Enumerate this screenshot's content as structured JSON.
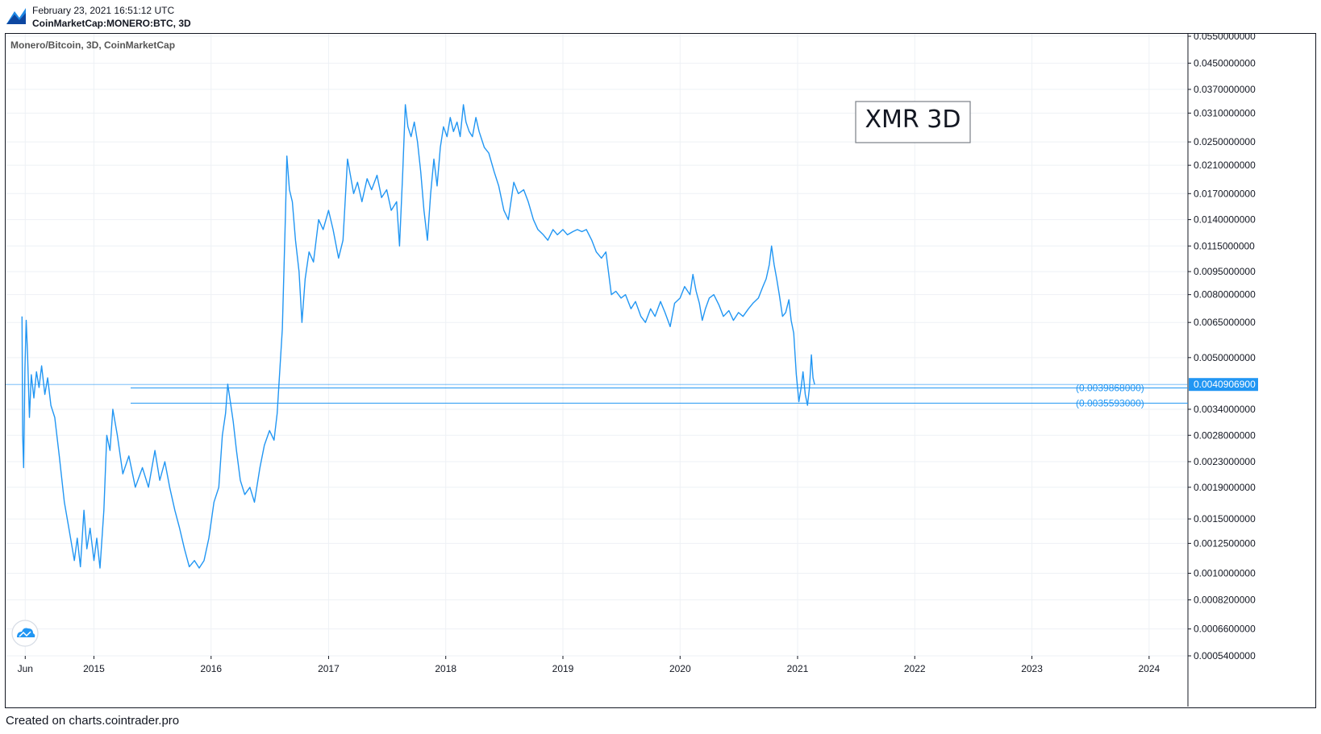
{
  "header": {
    "timestamp": "February 23, 2021 16:51:12 UTC",
    "symbol": "CoinMarketCap:MONERO:BTC, 3D"
  },
  "footer": {
    "credit": "Created on charts.cointrader.pro"
  },
  "colors": {
    "line": "#2196f3",
    "grid": "#eef1f5",
    "axis": "#131722",
    "frame": "#131722"
  },
  "icons": {
    "app_logo": "cointrader-logo-icon",
    "tv_badge": "tradingview-cloud-icon"
  },
  "chart_data": {
    "type": "line",
    "title": "XMR 3D",
    "legend": "Monero/Bitcoin, 3D, CoinMarketCap",
    "y_scale": "log",
    "ylim": [
      0.00054,
      0.055
    ],
    "xlim": [
      "2014-04-01",
      "2024-05-01"
    ],
    "grid": true,
    "x_ticks": [
      {
        "label": "Jun",
        "x": "2014-06-01"
      },
      {
        "label": "2015",
        "x": "2015-01-01"
      },
      {
        "label": "2016",
        "x": "2016-01-01"
      },
      {
        "label": "2017",
        "x": "2017-01-01"
      },
      {
        "label": "2018",
        "x": "2018-01-01"
      },
      {
        "label": "2019",
        "x": "2019-01-01"
      },
      {
        "label": "2020",
        "x": "2020-01-01"
      },
      {
        "label": "2021",
        "x": "2021-01-01"
      },
      {
        "label": "2022",
        "x": "2022-01-01"
      },
      {
        "label": "2023",
        "x": "2023-01-01"
      },
      {
        "label": "2024",
        "x": "2024-01-01"
      }
    ],
    "y_ticks": [
      "0.0550000000",
      "0.0450000000",
      "0.0370000000",
      "0.0310000000",
      "0.0250000000",
      "0.0210000000",
      "0.0170000000",
      "0.0140000000",
      "0.0115000000",
      "0.0095000000",
      "0.0080000000",
      "0.0065000000",
      "0.0050000000",
      "0.0034000000",
      "0.0028000000",
      "0.0023000000",
      "0.0019000000",
      "0.0015000000",
      "0.0012500000",
      "0.0010000000",
      "0.0008200000",
      "0.0006600000",
      "0.0005400000"
    ],
    "last_price": {
      "label": "0.0040906900",
      "value": 0.00409069
    },
    "levels": [
      {
        "label": "(0.0039868000)",
        "value": 0.0039868
      },
      {
        "label": "(0.0035593000)",
        "value": 0.0035593
      }
    ],
    "series": [
      {
        "values": [
          [
            "2014-05-22",
            0.0068
          ],
          [
            "2014-05-24",
            0.0028
          ],
          [
            "2014-05-27",
            0.0022
          ],
          [
            "2014-05-31",
            0.0046
          ],
          [
            "2014-06-04",
            0.0066
          ],
          [
            "2014-06-08",
            0.0052
          ],
          [
            "2014-06-14",
            0.0032
          ],
          [
            "2014-06-20",
            0.0044
          ],
          [
            "2014-06-28",
            0.0037
          ],
          [
            "2014-07-06",
            0.0045
          ],
          [
            "2014-07-14",
            0.004
          ],
          [
            "2014-07-22",
            0.0047
          ],
          [
            "2014-08-01",
            0.0038
          ],
          [
            "2014-08-10",
            0.0043
          ],
          [
            "2014-08-20",
            0.0035
          ],
          [
            "2014-09-01",
            0.0032
          ],
          [
            "2014-09-15",
            0.0024
          ],
          [
            "2014-10-01",
            0.0017
          ],
          [
            "2014-10-15",
            0.0014
          ],
          [
            "2014-11-01",
            0.0011
          ],
          [
            "2014-11-10",
            0.0013
          ],
          [
            "2014-11-20",
            0.00105
          ],
          [
            "2014-12-01",
            0.0016
          ],
          [
            "2014-12-10",
            0.0012
          ],
          [
            "2014-12-20",
            0.0014
          ],
          [
            "2015-01-01",
            0.0011
          ],
          [
            "2015-01-10",
            0.0013
          ],
          [
            "2015-01-20",
            0.00104
          ],
          [
            "2015-02-01",
            0.0016
          ],
          [
            "2015-02-10",
            0.0028
          ],
          [
            "2015-02-20",
            0.0025
          ],
          [
            "2015-03-01",
            0.0034
          ],
          [
            "2015-03-15",
            0.0028
          ],
          [
            "2015-04-01",
            0.0021
          ],
          [
            "2015-04-20",
            0.0024
          ],
          [
            "2015-05-10",
            0.0019
          ],
          [
            "2015-06-01",
            0.0022
          ],
          [
            "2015-06-20",
            0.0019
          ],
          [
            "2015-07-10",
            0.0025
          ],
          [
            "2015-07-25",
            0.002
          ],
          [
            "2015-08-10",
            0.0023
          ],
          [
            "2015-08-25",
            0.0019
          ],
          [
            "2015-09-10",
            0.0016
          ],
          [
            "2015-09-25",
            0.0014
          ],
          [
            "2015-10-10",
            0.0012
          ],
          [
            "2015-10-25",
            0.00105
          ],
          [
            "2015-11-10",
            0.0011
          ],
          [
            "2015-11-25",
            0.00104
          ],
          [
            "2015-12-10",
            0.0011
          ],
          [
            "2015-12-25",
            0.0013
          ],
          [
            "2016-01-10",
            0.0017
          ],
          [
            "2016-01-25",
            0.0019
          ],
          [
            "2016-02-05",
            0.0028
          ],
          [
            "2016-02-15",
            0.0033
          ],
          [
            "2016-02-22",
            0.0041
          ],
          [
            "2016-03-01",
            0.0036
          ],
          [
            "2016-03-10",
            0.0031
          ],
          [
            "2016-03-20",
            0.0025
          ],
          [
            "2016-04-01",
            0.002
          ],
          [
            "2016-04-15",
            0.0018
          ],
          [
            "2016-05-01",
            0.0019
          ],
          [
            "2016-05-15",
            0.0017
          ],
          [
            "2016-06-01",
            0.0022
          ],
          [
            "2016-06-15",
            0.0026
          ],
          [
            "2016-07-01",
            0.0029
          ],
          [
            "2016-07-15",
            0.0027
          ],
          [
            "2016-07-25",
            0.0033
          ],
          [
            "2016-08-10",
            0.0062
          ],
          [
            "2016-08-20",
            0.015
          ],
          [
            "2016-08-24",
            0.0225
          ],
          [
            "2016-09-01",
            0.0175
          ],
          [
            "2016-09-10",
            0.016
          ],
          [
            "2016-09-20",
            0.012
          ],
          [
            "2016-10-01",
            0.0095
          ],
          [
            "2016-10-10",
            0.0065
          ],
          [
            "2016-10-20",
            0.009
          ],
          [
            "2016-11-01",
            0.011
          ],
          [
            "2016-11-15",
            0.0102
          ],
          [
            "2016-12-01",
            0.014
          ],
          [
            "2016-12-15",
            0.013
          ],
          [
            "2017-01-01",
            0.015
          ],
          [
            "2017-01-15",
            0.013
          ],
          [
            "2017-02-01",
            0.0105
          ],
          [
            "2017-02-15",
            0.012
          ],
          [
            "2017-03-01",
            0.022
          ],
          [
            "2017-03-10",
            0.0195
          ],
          [
            "2017-03-20",
            0.017
          ],
          [
            "2017-04-01",
            0.0185
          ],
          [
            "2017-04-15",
            0.016
          ],
          [
            "2017-05-01",
            0.019
          ],
          [
            "2017-05-15",
            0.0175
          ],
          [
            "2017-06-01",
            0.0195
          ],
          [
            "2017-06-15",
            0.0165
          ],
          [
            "2017-07-01",
            0.0175
          ],
          [
            "2017-07-15",
            0.015
          ],
          [
            "2017-08-01",
            0.016
          ],
          [
            "2017-08-10",
            0.0115
          ],
          [
            "2017-08-20",
            0.02
          ],
          [
            "2017-08-28",
            0.033
          ],
          [
            "2017-09-05",
            0.028
          ],
          [
            "2017-09-15",
            0.026
          ],
          [
            "2017-09-25",
            0.029
          ],
          [
            "2017-10-05",
            0.025
          ],
          [
            "2017-10-15",
            0.02
          ],
          [
            "2017-10-25",
            0.015
          ],
          [
            "2017-11-05",
            0.012
          ],
          [
            "2017-11-15",
            0.017
          ],
          [
            "2017-11-25",
            0.022
          ],
          [
            "2017-12-05",
            0.018
          ],
          [
            "2017-12-15",
            0.024
          ],
          [
            "2017-12-25",
            0.028
          ],
          [
            "2018-01-05",
            0.026
          ],
          [
            "2018-01-15",
            0.03
          ],
          [
            "2018-01-25",
            0.027
          ],
          [
            "2018-02-05",
            0.029
          ],
          [
            "2018-02-15",
            0.026
          ],
          [
            "2018-02-25",
            0.033
          ],
          [
            "2018-03-05",
            0.029
          ],
          [
            "2018-03-15",
            0.027
          ],
          [
            "2018-03-25",
            0.026
          ],
          [
            "2018-04-05",
            0.03
          ],
          [
            "2018-04-15",
            0.027
          ],
          [
            "2018-05-01",
            0.024
          ],
          [
            "2018-05-15",
            0.023
          ],
          [
            "2018-06-01",
            0.02
          ],
          [
            "2018-06-15",
            0.018
          ],
          [
            "2018-07-01",
            0.015
          ],
          [
            "2018-07-15",
            0.014
          ],
          [
            "2018-08-01",
            0.0185
          ],
          [
            "2018-08-15",
            0.017
          ],
          [
            "2018-09-01",
            0.0175
          ],
          [
            "2018-09-15",
            0.016
          ],
          [
            "2018-10-01",
            0.014
          ],
          [
            "2018-10-15",
            0.013
          ],
          [
            "2018-11-01",
            0.0125
          ],
          [
            "2018-11-15",
            0.012
          ],
          [
            "2018-12-01",
            0.013
          ],
          [
            "2018-12-15",
            0.0125
          ],
          [
            "2019-01-01",
            0.013
          ],
          [
            "2019-01-15",
            0.0125
          ],
          [
            "2019-02-01",
            0.0128
          ],
          [
            "2019-02-15",
            0.013
          ],
          [
            "2019-03-01",
            0.0128
          ],
          [
            "2019-03-15",
            0.013
          ],
          [
            "2019-04-01",
            0.012
          ],
          [
            "2019-04-15",
            0.011
          ],
          [
            "2019-05-01",
            0.0105
          ],
          [
            "2019-05-15",
            0.011
          ],
          [
            "2019-06-01",
            0.008
          ],
          [
            "2019-06-15",
            0.0082
          ],
          [
            "2019-07-01",
            0.0078
          ],
          [
            "2019-07-15",
            0.008
          ],
          [
            "2019-08-01",
            0.0072
          ],
          [
            "2019-08-15",
            0.0076
          ],
          [
            "2019-09-01",
            0.0068
          ],
          [
            "2019-09-15",
            0.0065
          ],
          [
            "2019-10-01",
            0.0072
          ],
          [
            "2019-10-15",
            0.0068
          ],
          [
            "2019-11-01",
            0.0076
          ],
          [
            "2019-11-15",
            0.007
          ],
          [
            "2019-12-01",
            0.0063
          ],
          [
            "2019-12-15",
            0.0075
          ],
          [
            "2020-01-01",
            0.0078
          ],
          [
            "2020-01-15",
            0.0085
          ],
          [
            "2020-02-01",
            0.008
          ],
          [
            "2020-02-10",
            0.0093
          ],
          [
            "2020-02-20",
            0.0082
          ],
          [
            "2020-03-01",
            0.0075
          ],
          [
            "2020-03-10",
            0.0066
          ],
          [
            "2020-03-20",
            0.0072
          ],
          [
            "2020-04-01",
            0.0078
          ],
          [
            "2020-04-15",
            0.008
          ],
          [
            "2020-05-01",
            0.0074
          ],
          [
            "2020-05-15",
            0.0068
          ],
          [
            "2020-06-01",
            0.0071
          ],
          [
            "2020-06-15",
            0.0066
          ],
          [
            "2020-07-01",
            0.007
          ],
          [
            "2020-07-15",
            0.0068
          ],
          [
            "2020-08-01",
            0.0072
          ],
          [
            "2020-08-15",
            0.0075
          ],
          [
            "2020-09-01",
            0.0078
          ],
          [
            "2020-09-15",
            0.0085
          ],
          [
            "2020-09-25",
            0.009
          ],
          [
            "2020-10-05",
            0.01
          ],
          [
            "2020-10-12",
            0.0115
          ],
          [
            "2020-10-20",
            0.01
          ],
          [
            "2020-10-28",
            0.009
          ],
          [
            "2020-11-05",
            0.008
          ],
          [
            "2020-11-15",
            0.0068
          ],
          [
            "2020-11-25",
            0.007
          ],
          [
            "2020-12-05",
            0.0077
          ],
          [
            "2020-12-12",
            0.0066
          ],
          [
            "2020-12-20",
            0.006
          ],
          [
            "2020-12-28",
            0.0044
          ],
          [
            "2021-01-05",
            0.0036
          ],
          [
            "2021-01-12",
            0.004
          ],
          [
            "2021-01-18",
            0.0045
          ],
          [
            "2021-01-25",
            0.0038
          ],
          [
            "2021-02-01",
            0.0035
          ],
          [
            "2021-02-07",
            0.004
          ],
          [
            "2021-02-13",
            0.0051
          ],
          [
            "2021-02-18",
            0.0043
          ],
          [
            "2021-02-23",
            0.00409069
          ]
        ]
      }
    ]
  }
}
